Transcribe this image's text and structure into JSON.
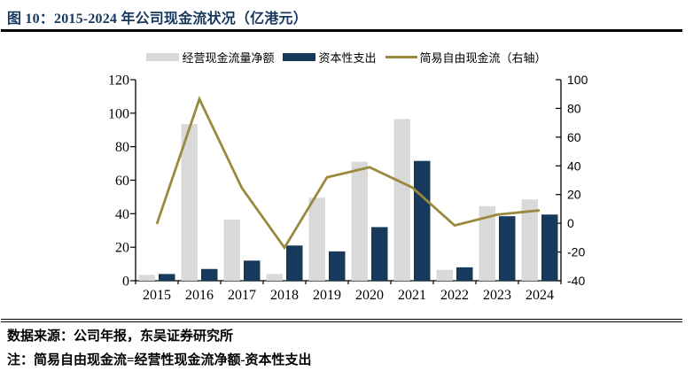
{
  "figure": {
    "title": "图 10：2015-2024 年公司现金流状况（亿港元）",
    "source": "数据来源：公司年报，东吴证券研究所",
    "note": "注：简易自由现金流=经营性现金流净额-资本性支出"
  },
  "colors": {
    "title_navy": "#17375E",
    "bar_gray": "#D9D9D9",
    "bar_navy": "#16395C",
    "line_olive": "#9A8A3E",
    "axis_black": "#000000"
  },
  "chart_data": {
    "type": "combo",
    "title": "2015-2024 年公司现金流状况（亿港元）",
    "categories": [
      "2015",
      "2016",
      "2017",
      "2018",
      "2019",
      "2020",
      "2021",
      "2022",
      "2023",
      "2024"
    ],
    "series": [
      {
        "name": "经营现金流量净额",
        "type": "bar",
        "axis": "left",
        "color": "#D9D9D9",
        "values": [
          3.5,
          93.5,
          36.5,
          4,
          49.5,
          71,
          96.5,
          6.5,
          44.5,
          48.5
        ]
      },
      {
        "name": "资本性支出",
        "type": "bar",
        "axis": "left",
        "color": "#16395C",
        "values": [
          4,
          7,
          12,
          21,
          17.5,
          32,
          71.5,
          8,
          38.5,
          39.5
        ]
      },
      {
        "name": "简易自由现金流（右轴）",
        "type": "line",
        "axis": "right",
        "color": "#9A8A3E",
        "values": [
          -0.5,
          86.5,
          24.5,
          -17,
          32,
          39,
          25,
          -1.5,
          6,
          9
        ]
      }
    ],
    "left_axis": {
      "min": 0,
      "max": 120,
      "ticks": [
        0,
        20,
        40,
        60,
        80,
        100,
        120
      ]
    },
    "right_axis": {
      "min": -40,
      "max": 100,
      "ticks": [
        -40,
        -20,
        0,
        20,
        40,
        60,
        80,
        100
      ]
    },
    "grid": false,
    "legend_position": "top"
  }
}
